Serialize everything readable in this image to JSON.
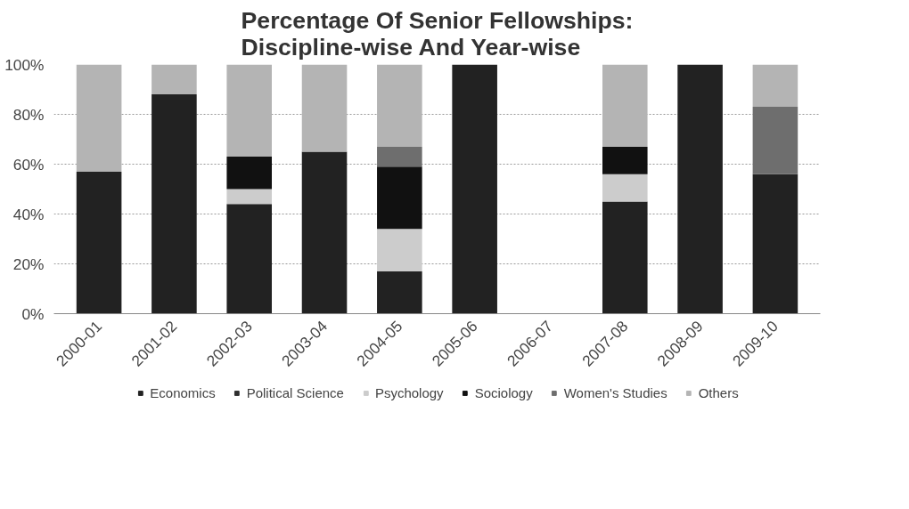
{
  "chart_data": {
    "type": "bar",
    "title": "Percentage Of Senior Fellowships: Discipline-wise And Year-wise",
    "stacked": true,
    "categories": [
      "2000-01",
      "2001-02",
      "2002-03",
      "2003-04",
      "2004-05",
      "2005-06",
      "2006-07",
      "2007-08",
      "2008-09",
      "2009-10"
    ],
    "series": [
      {
        "name": "Economics",
        "color": "#222222",
        "values": [
          57,
          88,
          44,
          65,
          17,
          100,
          null,
          45,
          100,
          56
        ]
      },
      {
        "name": "Political Science",
        "color": "#2e2e2e",
        "values": [
          null,
          null,
          null,
          null,
          null,
          null,
          null,
          null,
          null,
          null
        ]
      },
      {
        "name": "Psychology",
        "color": "#cccccc",
        "values": [
          null,
          null,
          6,
          null,
          17,
          null,
          null,
          11,
          null,
          null
        ]
      },
      {
        "name": "Sociology",
        "color": "#111111",
        "values": [
          null,
          null,
          13,
          null,
          25,
          null,
          null,
          11,
          null,
          null
        ]
      },
      {
        "name": "Women's Studies",
        "color": "#6e6e6e",
        "values": [
          null,
          null,
          null,
          null,
          8,
          null,
          null,
          null,
          null,
          27
        ]
      },
      {
        "name": "Others",
        "color": "#b4b4b4",
        "values": [
          43,
          12,
          37,
          35,
          33,
          null,
          null,
          33,
          null,
          17
        ]
      }
    ],
    "ylim": [
      0,
      100
    ],
    "yticks": [
      {
        "value": 0,
        "label": "0%"
      },
      {
        "value": 20,
        "label": "20%"
      },
      {
        "value": 40,
        "label": "40%"
      },
      {
        "value": 60,
        "label": "60%"
      },
      {
        "value": 80,
        "label": "80%"
      },
      {
        "value": 100,
        "label": "100%"
      }
    ],
    "grid": "y",
    "legend": "bottom"
  }
}
